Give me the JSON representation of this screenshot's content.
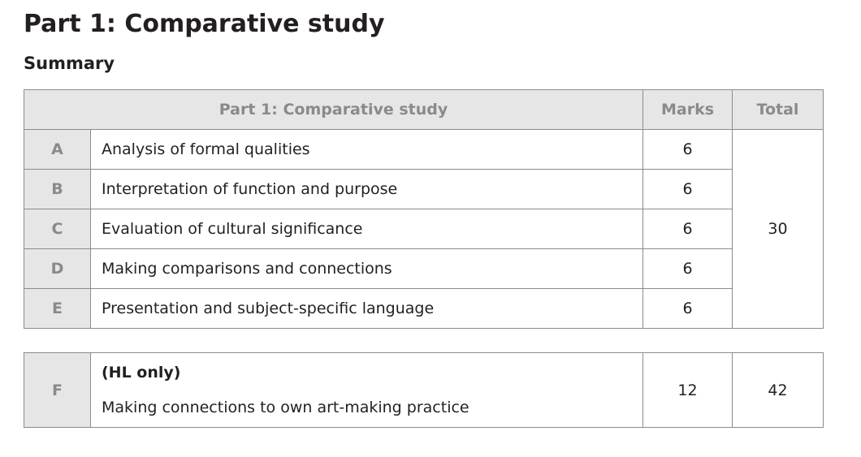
{
  "page": {
    "title": "Part 1: Comparative study",
    "subtitle": "Summary"
  },
  "main_table": {
    "headers": {
      "criterion": "Part 1: Comparative study",
      "marks": "Marks",
      "total": "Total"
    },
    "rows": [
      {
        "letter": "A",
        "description": "Analysis of formal qualities",
        "marks": "6"
      },
      {
        "letter": "B",
        "description": "Interpretation of function and purpose",
        "marks": "6"
      },
      {
        "letter": "C",
        "description": "Evaluation of cultural significance",
        "marks": "6"
      },
      {
        "letter": "D",
        "description": "Making comparisons and connections",
        "marks": "6"
      },
      {
        "letter": "E",
        "description": "Presentation and subject-specific language",
        "marks": "6"
      }
    ],
    "total": "30"
  },
  "hl_table": {
    "letter": "F",
    "note": "(HL only)",
    "description": "Making connections to own art-making practice",
    "marks": "12",
    "total": "42"
  }
}
